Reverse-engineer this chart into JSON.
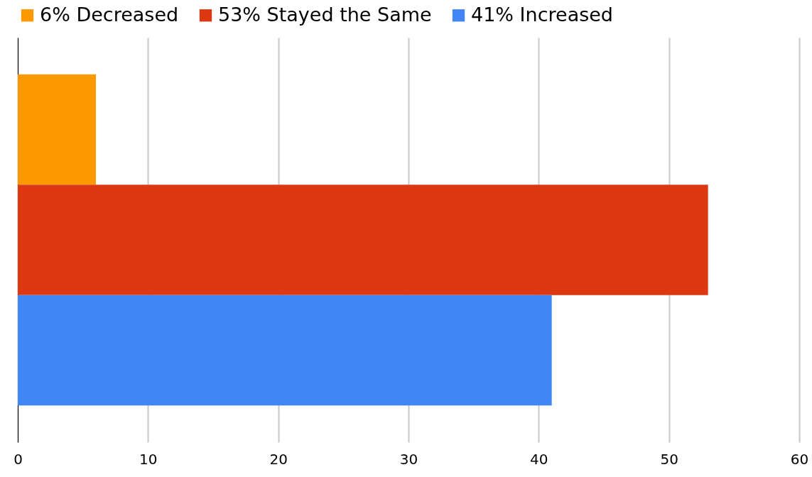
{
  "chart_data": {
    "type": "bar",
    "orientation": "horizontal",
    "categories": [
      null
    ],
    "series": [
      {
        "name": "6% Decreased",
        "color": "#ff9900",
        "values": [
          6
        ]
      },
      {
        "name": "53% Stayed the Same",
        "color": "#dc3912",
        "values": [
          53
        ]
      },
      {
        "name": "41% Increased",
        "color": "#4285f4",
        "values": [
          41
        ]
      }
    ],
    "xlim": [
      0,
      60
    ],
    "xticks": [
      0,
      10,
      20,
      30,
      40,
      50,
      60
    ],
    "grid": "x",
    "legend": "top"
  }
}
